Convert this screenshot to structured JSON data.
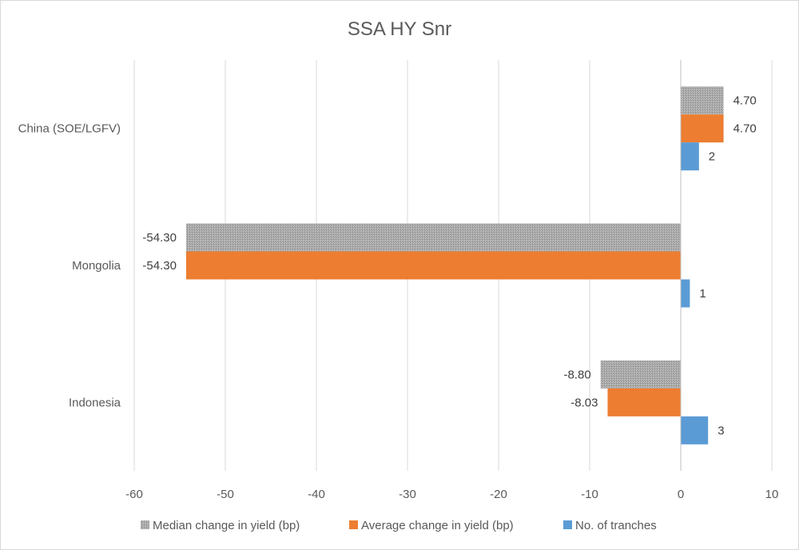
{
  "chart_data": {
    "type": "bar",
    "orientation": "horizontal",
    "title": "SSA HY Snr",
    "categories": [
      "China (SOE/LGFV)",
      "Mongolia",
      "Indonesia"
    ],
    "series": [
      {
        "name": "Median change in yield (bp)",
        "color": "#a5a5a5",
        "pattern": "dotted",
        "values": [
          4.7,
          -54.3,
          -8.8
        ],
        "labels": [
          "4.70",
          "-54.30",
          "-8.80"
        ]
      },
      {
        "name": "Average change in yield (bp)",
        "color": "#ed7d31",
        "values": [
          4.7,
          -54.3,
          -8.03
        ],
        "labels": [
          "4.70",
          "-54.30",
          "-8.03"
        ]
      },
      {
        "name": "No. of tranches",
        "color": "#5b9bd5",
        "values": [
          2,
          1,
          3
        ],
        "labels": [
          "2",
          "1",
          "3"
        ]
      }
    ],
    "xlim": [
      -60,
      10
    ],
    "xticks": [
      -60,
      -50,
      -40,
      -30,
      -20,
      -10,
      0,
      10
    ],
    "xtick_labels": [
      "-60",
      "-50",
      "-40",
      "-30",
      "-20",
      "-10",
      "0",
      "10"
    ],
    "grid": true,
    "legend_position": "bottom"
  }
}
